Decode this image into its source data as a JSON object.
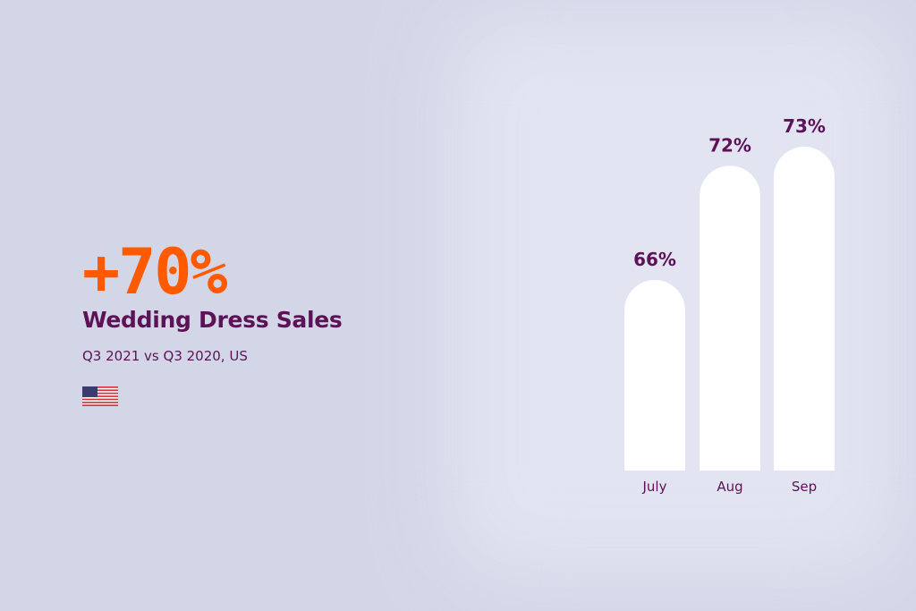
{
  "headline": {
    "value": "+70%",
    "title": "Wedding Dress Sales",
    "subtitle": "Q3 2021 vs Q3 2020, US",
    "flag_icon": "us-flag-icon"
  },
  "colors": {
    "accent": "#ff5a00",
    "text": "#5d1257",
    "bar": "#ffffff",
    "background": "#d3d6e7"
  },
  "chart_data": {
    "type": "bar",
    "categories": [
      "July",
      "Aug",
      "Sep"
    ],
    "values": [
      66,
      72,
      73
    ],
    "value_labels": [
      "66%",
      "72%",
      "73%"
    ],
    "title": "",
    "xlabel": "",
    "ylabel": "",
    "grid": false,
    "legend": "none"
  }
}
